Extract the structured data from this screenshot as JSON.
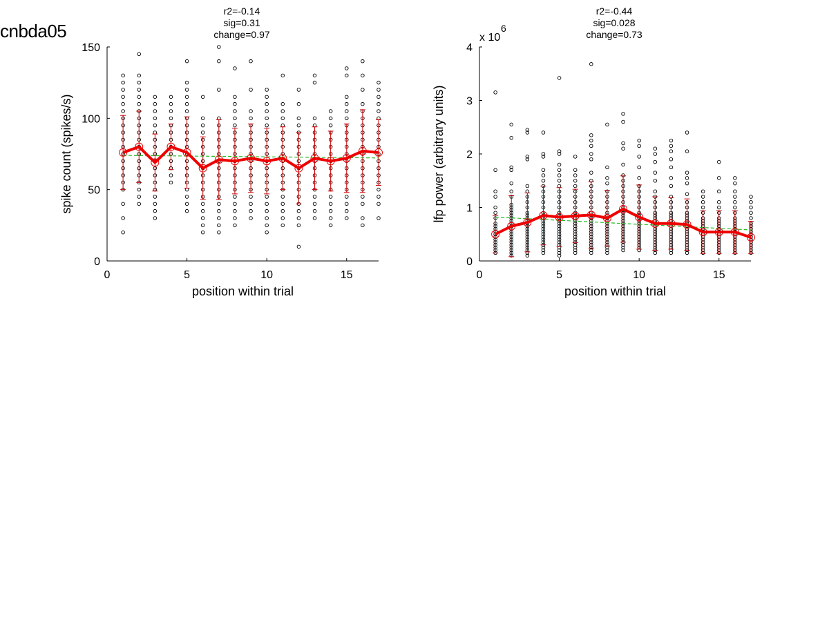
{
  "page": {
    "title": "cnbda05"
  },
  "colors": {
    "mean_line": "#ee0000",
    "error_bar": "#cc0000",
    "trend": "#22bb22",
    "points": "#000000"
  },
  "chart_data": [
    {
      "type": "scatter",
      "title_lines": [
        "r2=-0.14",
        "sig=0.31",
        "change=0.97"
      ],
      "xlabel": "position within trial",
      "ylabel": "spike count (spikes/s)",
      "xlim": [
        0,
        17
      ],
      "ylim": [
        0,
        150
      ],
      "xticks": [
        0,
        5,
        10,
        15
      ],
      "yticks": [
        0,
        50,
        100,
        150
      ],
      "ytick_labels": [
        "0",
        "50",
        "100",
        "150"
      ],
      "exponent_label": "",
      "mean": [
        76,
        80,
        69,
        80,
        76,
        65,
        71,
        70,
        72,
        70,
        72,
        65,
        72,
        70,
        72,
        77,
        76
      ],
      "error": [
        26,
        25,
        20,
        16,
        25,
        22,
        28,
        23,
        24,
        23,
        22,
        25,
        22,
        21,
        24,
        29,
        23
      ],
      "trend": [
        74,
        72.2
      ],
      "points": [
        [
          20,
          30,
          40,
          50,
          55,
          60,
          65,
          70,
          75,
          80,
          85,
          90,
          95,
          100,
          105,
          110,
          115,
          120,
          125,
          130
        ],
        [
          40,
          45,
          50,
          55,
          60,
          65,
          70,
          75,
          80,
          85,
          90,
          95,
          100,
          105,
          110,
          115,
          120,
          125,
          130,
          145
        ],
        [
          30,
          35,
          40,
          45,
          50,
          55,
          60,
          65,
          70,
          75,
          80,
          85,
          90,
          95,
          100,
          105,
          110,
          115
        ],
        [
          55,
          60,
          65,
          70,
          75,
          80,
          85,
          90,
          95,
          100,
          105,
          110,
          115
        ],
        [
          35,
          40,
          45,
          50,
          55,
          60,
          65,
          70,
          75,
          80,
          85,
          90,
          95,
          100,
          105,
          110,
          115,
          120,
          125,
          140
        ],
        [
          20,
          25,
          30,
          35,
          40,
          45,
          50,
          55,
          60,
          65,
          70,
          75,
          80,
          85,
          90,
          95,
          100,
          115
        ],
        [
          20,
          25,
          30,
          35,
          40,
          45,
          50,
          55,
          60,
          65,
          70,
          75,
          80,
          85,
          90,
          95,
          100,
          120,
          140,
          150
        ],
        [
          25,
          30,
          35,
          40,
          45,
          50,
          55,
          60,
          65,
          70,
          75,
          80,
          85,
          90,
          95,
          100,
          105,
          110,
          115,
          135
        ],
        [
          30,
          35,
          40,
          45,
          50,
          55,
          60,
          65,
          70,
          75,
          80,
          85,
          90,
          95,
          100,
          105,
          120,
          140
        ],
        [
          20,
          25,
          30,
          35,
          40,
          45,
          50,
          55,
          60,
          65,
          70,
          75,
          80,
          85,
          90,
          95,
          100,
          105,
          110,
          115,
          120
        ],
        [
          25,
          30,
          35,
          40,
          45,
          50,
          55,
          60,
          65,
          70,
          75,
          80,
          85,
          90,
          95,
          100,
          105,
          110,
          130
        ],
        [
          10,
          25,
          30,
          35,
          40,
          45,
          50,
          55,
          60,
          65,
          70,
          75,
          80,
          85,
          90,
          95,
          100,
          110,
          120
        ],
        [
          30,
          35,
          40,
          45,
          50,
          55,
          60,
          65,
          70,
          75,
          80,
          85,
          90,
          95,
          100,
          125,
          130
        ],
        [
          25,
          30,
          35,
          40,
          45,
          50,
          55,
          60,
          65,
          70,
          75,
          80,
          85,
          90,
          95,
          100,
          105
        ],
        [
          30,
          35,
          40,
          45,
          50,
          55,
          60,
          65,
          70,
          75,
          80,
          85,
          90,
          95,
          100,
          105,
          110,
          115,
          130,
          135
        ],
        [
          25,
          30,
          40,
          45,
          50,
          55,
          60,
          65,
          70,
          75,
          80,
          85,
          90,
          95,
          100,
          105,
          110,
          120,
          130,
          140
        ],
        [
          30,
          40,
          45,
          50,
          55,
          60,
          65,
          70,
          75,
          80,
          85,
          90,
          95,
          100,
          105,
          110,
          115,
          120,
          125
        ]
      ]
    },
    {
      "type": "scatter",
      "title_lines": [
        "r2=-0.44",
        "sig=0.028",
        "change=0.73"
      ],
      "xlabel": "position within trial",
      "ylabel": "lfp power (arbitrary units)",
      "xlim": [
        0,
        17
      ],
      "ylim": [
        0,
        4
      ],
      "xticks": [
        0,
        5,
        10,
        15
      ],
      "yticks": [
        0,
        1,
        2,
        3,
        4
      ],
      "ytick_labels": [
        "0",
        "1",
        "2",
        "3",
        "4"
      ],
      "exponent_label": "x 10",
      "exponent_power": "6",
      "mean": [
        0.5,
        0.65,
        0.72,
        0.85,
        0.82,
        0.84,
        0.86,
        0.8,
        0.97,
        0.82,
        0.7,
        0.7,
        0.68,
        0.54,
        0.54,
        0.54,
        0.44
      ],
      "error": [
        0.35,
        0.57,
        0.55,
        0.55,
        0.55,
        0.5,
        0.62,
        0.52,
        0.62,
        0.6,
        0.5,
        0.48,
        0.48,
        0.4,
        0.4,
        0.4,
        0.3
      ],
      "trend": [
        0.82,
        0.58
      ],
      "points": [
        [
          0.15,
          0.2,
          0.25,
          0.3,
          0.35,
          0.4,
          0.45,
          0.5,
          0.55,
          0.6,
          0.65,
          0.7,
          0.8,
          0.9,
          1.0,
          1.2,
          1.3,
          1.7,
          3.15
        ],
        [
          0.1,
          0.15,
          0.2,
          0.25,
          0.3,
          0.35,
          0.4,
          0.45,
          0.5,
          0.55,
          0.6,
          0.65,
          0.7,
          0.75,
          0.8,
          0.85,
          0.9,
          0.95,
          1.0,
          1.05,
          1.2,
          1.3,
          1.45,
          1.7,
          1.75,
          2.3,
          2.55
        ],
        [
          0.1,
          0.15,
          0.2,
          0.25,
          0.3,
          0.35,
          0.4,
          0.45,
          0.5,
          0.55,
          0.6,
          0.65,
          0.7,
          0.75,
          0.8,
          0.85,
          0.9,
          1.0,
          1.1,
          1.2,
          1.3,
          1.4,
          1.9,
          1.95,
          2.4,
          2.45
        ],
        [
          0.15,
          0.2,
          0.25,
          0.3,
          0.35,
          0.4,
          0.45,
          0.5,
          0.55,
          0.6,
          0.65,
          0.7,
          0.75,
          0.8,
          0.85,
          0.9,
          1.0,
          1.1,
          1.2,
          1.3,
          1.4,
          1.5,
          1.6,
          1.7,
          1.95,
          2.0,
          2.4
        ],
        [
          0.1,
          0.15,
          0.2,
          0.25,
          0.3,
          0.35,
          0.4,
          0.45,
          0.5,
          0.55,
          0.6,
          0.65,
          0.7,
          0.75,
          0.8,
          0.85,
          0.9,
          1.0,
          1.1,
          1.2,
          1.3,
          1.4,
          1.5,
          1.6,
          1.7,
          1.8,
          2.0,
          2.05,
          3.42
        ],
        [
          0.15,
          0.2,
          0.25,
          0.3,
          0.35,
          0.4,
          0.45,
          0.5,
          0.55,
          0.6,
          0.65,
          0.7,
          0.75,
          0.8,
          0.85,
          0.9,
          1.0,
          1.1,
          1.2,
          1.3,
          1.4,
          1.5,
          1.6,
          1.7,
          1.95
        ],
        [
          0.15,
          0.2,
          0.25,
          0.3,
          0.35,
          0.4,
          0.45,
          0.5,
          0.55,
          0.6,
          0.65,
          0.7,
          0.75,
          0.8,
          0.85,
          0.9,
          1.0,
          1.1,
          1.2,
          1.3,
          1.4,
          1.5,
          1.65,
          1.9,
          2.0,
          2.15,
          2.25,
          2.35,
          3.68
        ],
        [
          0.15,
          0.2,
          0.25,
          0.3,
          0.35,
          0.4,
          0.45,
          0.5,
          0.55,
          0.6,
          0.65,
          0.7,
          0.75,
          0.8,
          0.85,
          0.9,
          1.0,
          1.1,
          1.2,
          1.3,
          1.45,
          1.55,
          1.75,
          2.55
        ],
        [
          0.2,
          0.25,
          0.3,
          0.35,
          0.4,
          0.45,
          0.5,
          0.55,
          0.6,
          0.65,
          0.7,
          0.75,
          0.8,
          0.85,
          0.9,
          0.95,
          1.0,
          1.1,
          1.2,
          1.3,
          1.4,
          1.5,
          1.6,
          1.8,
          2.1,
          2.2,
          2.6,
          2.75
        ],
        [
          0.2,
          0.25,
          0.3,
          0.35,
          0.4,
          0.45,
          0.5,
          0.55,
          0.6,
          0.65,
          0.7,
          0.75,
          0.8,
          0.85,
          0.9,
          1.0,
          1.1,
          1.2,
          1.3,
          1.4,
          1.55,
          1.75,
          1.95,
          2.15,
          2.25
        ],
        [
          0.15,
          0.2,
          0.25,
          0.3,
          0.35,
          0.4,
          0.45,
          0.5,
          0.55,
          0.6,
          0.65,
          0.7,
          0.75,
          0.8,
          0.85,
          0.9,
          1.0,
          1.1,
          1.2,
          1.3,
          1.5,
          1.65,
          1.85,
          2.0,
          2.1
        ],
        [
          0.15,
          0.2,
          0.25,
          0.3,
          0.35,
          0.4,
          0.45,
          0.5,
          0.55,
          0.6,
          0.65,
          0.7,
          0.75,
          0.8,
          0.85,
          0.9,
          1.0,
          1.1,
          1.2,
          1.4,
          1.55,
          1.75,
          1.9,
          2.05,
          2.15,
          2.25
        ],
        [
          0.15,
          0.2,
          0.25,
          0.3,
          0.35,
          0.4,
          0.45,
          0.5,
          0.55,
          0.6,
          0.65,
          0.7,
          0.75,
          0.8,
          0.85,
          0.9,
          1.0,
          1.1,
          1.25,
          1.45,
          1.55,
          1.65,
          2.05,
          2.4
        ],
        [
          0.15,
          0.2,
          0.25,
          0.3,
          0.35,
          0.4,
          0.45,
          0.5,
          0.55,
          0.6,
          0.65,
          0.7,
          0.75,
          0.8,
          0.9,
          1.0,
          1.1,
          1.2,
          1.3
        ],
        [
          0.15,
          0.2,
          0.25,
          0.3,
          0.35,
          0.4,
          0.45,
          0.5,
          0.55,
          0.6,
          0.65,
          0.7,
          0.75,
          0.8,
          0.9,
          1.0,
          1.1,
          1.3,
          1.55,
          1.85
        ],
        [
          0.15,
          0.2,
          0.25,
          0.3,
          0.35,
          0.4,
          0.45,
          0.5,
          0.55,
          0.6,
          0.65,
          0.7,
          0.75,
          0.8,
          0.9,
          1.0,
          1.1,
          1.2,
          1.3,
          1.45,
          1.55
        ],
        [
          0.15,
          0.2,
          0.25,
          0.3,
          0.35,
          0.4,
          0.45,
          0.5,
          0.55,
          0.6,
          0.65,
          0.7,
          0.8,
          0.9,
          1.0,
          1.1,
          1.2
        ]
      ]
    }
  ]
}
